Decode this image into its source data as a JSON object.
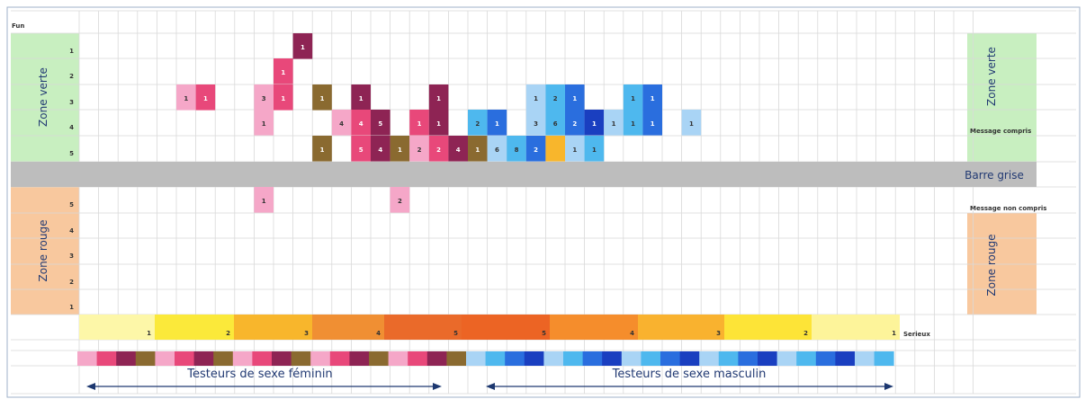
{
  "chart_data": {
    "type": "heatmap",
    "y_axis_title": "Fun",
    "serious_label": "Serieux",
    "side_labels": {
      "left_top": "Zone verte",
      "left_bottom": "Zone rouge",
      "right_top": "Zone verte",
      "right_bottom": "Zone rouge",
      "gray_bar": "Barre grise",
      "message_understood": "Message compris",
      "message_not_understood": "Message non compris"
    },
    "upper_rows": [
      "1",
      "2",
      "3",
      "4",
      "5"
    ],
    "lower_rows": [
      "5",
      "4",
      "3",
      "2",
      "1"
    ],
    "scale": [
      {
        "label": "1",
        "color": "#fdf7a8"
      },
      {
        "label": "2",
        "color": "#fbe93a"
      },
      {
        "label": "3",
        "color": "#f8b62c"
      },
      {
        "label": "4",
        "color": "#f08f33"
      },
      {
        "label": "5",
        "color": "#ea6a2a"
      },
      {
        "label": "5",
        "color": "#ec6424"
      },
      {
        "label": "4",
        "color": "#f58d2c"
      },
      {
        "label": "3",
        "color": "#f9b22f"
      },
      {
        "label": "2",
        "color": "#fde437"
      },
      {
        "label": "1",
        "color": "#fdf49a"
      }
    ],
    "tester_groups": {
      "female": "Testeurs de sexe féminin",
      "male": "Testeurs de sexe masculin"
    },
    "tester_colors": {
      "female": [
        "#f5a7c8",
        "#e8487a",
        "#8e2454",
        "#8a6a30"
      ],
      "male": [
        "#a9d4f5",
        "#4eb8ee",
        "#2a6ede",
        "#1a3fc0"
      ]
    },
    "cells": [
      {
        "col": 11,
        "row": "u1",
        "color": "#8e2454",
        "label": "1"
      },
      {
        "col": 10,
        "row": "u2",
        "color": "#e8487a",
        "label": "1"
      },
      {
        "col": 5,
        "row": "u3",
        "color": "#f5a7c8",
        "label": "1"
      },
      {
        "col": 6,
        "row": "u3",
        "color": "#e8487a",
        "label": "1"
      },
      {
        "col": 9,
        "row": "u3",
        "color": "#f5a7c8",
        "label": "3"
      },
      {
        "col": 10,
        "row": "u3",
        "color": "#e8487a",
        "label": "1"
      },
      {
        "col": 12,
        "row": "u3",
        "color": "#8a6a30",
        "label": "1"
      },
      {
        "col": 14,
        "row": "u3",
        "color": "#8e2454",
        "label": "1"
      },
      {
        "col": 18,
        "row": "u3",
        "color": "#8e2454",
        "label": "1"
      },
      {
        "col": 23,
        "row": "u3",
        "color": "#a9d4f5",
        "label": "1"
      },
      {
        "col": 24,
        "row": "u3",
        "color": "#4eb8ee",
        "label": "2"
      },
      {
        "col": 25,
        "row": "u3",
        "color": "#2a6ede",
        "label": "1"
      },
      {
        "col": 28,
        "row": "u3",
        "color": "#4eb8ee",
        "label": "1"
      },
      {
        "col": 29,
        "row": "u3",
        "color": "#2a6ede",
        "label": "1"
      },
      {
        "col": 9,
        "row": "u4",
        "color": "#f5a7c8",
        "label": "1"
      },
      {
        "col": 13,
        "row": "u4",
        "color": "#f5a7c8",
        "label": "4"
      },
      {
        "col": 14,
        "row": "u4",
        "color": "#e8487a",
        "label": "4"
      },
      {
        "col": 15,
        "row": "u4",
        "color": "#8e2454",
        "label": "5"
      },
      {
        "col": 17,
        "row": "u4",
        "color": "#e8487a",
        "label": "1"
      },
      {
        "col": 18,
        "row": "u4",
        "color": "#8e2454",
        "label": "1"
      },
      {
        "col": 20,
        "row": "u4",
        "color": "#4eb8ee",
        "label": "2"
      },
      {
        "col": 21,
        "row": "u4",
        "color": "#2a6ede",
        "label": "1"
      },
      {
        "col": 23,
        "row": "u4",
        "color": "#a9d4f5",
        "label": "3"
      },
      {
        "col": 24,
        "row": "u4",
        "color": "#4eb8ee",
        "label": "6"
      },
      {
        "col": 25,
        "row": "u4",
        "color": "#2a6ede",
        "label": "2"
      },
      {
        "col": 26,
        "row": "u4",
        "color": "#1a3fc0",
        "label": "1"
      },
      {
        "col": 27,
        "row": "u4",
        "color": "#a9d4f5",
        "label": "1"
      },
      {
        "col": 28,
        "row": "u4",
        "color": "#4eb8ee",
        "label": "1"
      },
      {
        "col": 29,
        "row": "u4",
        "color": "#2a6ede",
        "label": "1"
      },
      {
        "col": 31,
        "row": "u4",
        "color": "#a9d4f5",
        "label": "1"
      },
      {
        "col": 12,
        "row": "u5",
        "color": "#8a6a30",
        "label": "1"
      },
      {
        "col": 14,
        "row": "u5",
        "color": "#e8487a",
        "label": "5"
      },
      {
        "col": 15,
        "row": "u5",
        "color": "#8e2454",
        "label": "4"
      },
      {
        "col": 16,
        "row": "u5",
        "color": "#8a6a30",
        "label": "1"
      },
      {
        "col": 17,
        "row": "u5",
        "color": "#f5a7c8",
        "label": "2"
      },
      {
        "col": 18,
        "row": "u5",
        "color": "#e8487a",
        "label": "2"
      },
      {
        "col": 19,
        "row": "u5",
        "color": "#8e2454",
        "label": "4"
      },
      {
        "col": 20,
        "row": "u5",
        "color": "#8a6a30",
        "label": "1"
      },
      {
        "col": 21,
        "row": "u5",
        "color": "#a9d4f5",
        "label": "6"
      },
      {
        "col": 22,
        "row": "u5",
        "color": "#4eb8ee",
        "label": "8"
      },
      {
        "col": 23,
        "row": "u5",
        "color": "#2a6ede",
        "label": "2"
      },
      {
        "col": 24,
        "row": "u5",
        "color": "#f8b62c",
        "label": ""
      },
      {
        "col": 25,
        "row": "u5",
        "color": "#a9d4f5",
        "label": "1"
      },
      {
        "col": 26,
        "row": "u5",
        "color": "#4eb8ee",
        "label": "1"
      },
      {
        "col": 9,
        "row": "l5",
        "color": "#f5a7c8",
        "label": "1"
      },
      {
        "col": 16,
        "row": "l5",
        "color": "#f5a7c8",
        "label": "2"
      }
    ]
  }
}
